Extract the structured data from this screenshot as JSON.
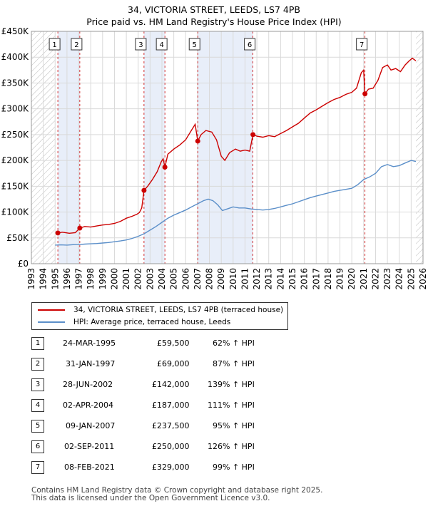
{
  "chart_data": {
    "type": "line",
    "title": "34, VICTORIA STREET, LEEDS, LS7 4PB",
    "subtitle": "Price paid vs. HM Land Registry's House Price Index (HPI)",
    "xlim": [
      1993,
      2026
    ],
    "ylim": [
      0,
      450000
    ],
    "y_ticks": [
      0,
      50000,
      100000,
      150000,
      200000,
      250000,
      300000,
      350000,
      400000,
      450000
    ],
    "y_tick_labels": [
      "£0",
      "£50K",
      "£100K",
      "£150K",
      "£200K",
      "£250K",
      "£300K",
      "£350K",
      "£400K",
      "£450K"
    ],
    "x_ticks": [
      "1993",
      "1994",
      "1995",
      "1996",
      "1997",
      "1998",
      "1999",
      "2000",
      "2001",
      "2002",
      "2003",
      "2004",
      "2005",
      "2006",
      "2007",
      "2008",
      "2009",
      "2010",
      "2011",
      "2012",
      "2013",
      "2014",
      "2015",
      "2016",
      "2017",
      "2018",
      "2019",
      "2020",
      "2021",
      "2022",
      "2023",
      "2024",
      "2025",
      "2026"
    ],
    "grid": true,
    "series": [
      {
        "name": "34, VICTORIA STREET, LEEDS, LS7 4PB (terraced house)",
        "color": "#cc0000",
        "points": [
          [
            1995.23,
            59500
          ],
          [
            1995.6,
            61000
          ],
          [
            1996.2,
            59000
          ],
          [
            1996.7,
            60000
          ],
          [
            1997.08,
            69000
          ],
          [
            1997.5,
            72000
          ],
          [
            1998.0,
            71000
          ],
          [
            1998.5,
            73000
          ],
          [
            1999.0,
            75000
          ],
          [
            1999.5,
            76000
          ],
          [
            2000.0,
            78000
          ],
          [
            2000.5,
            82000
          ],
          [
            2001.0,
            88000
          ],
          [
            2001.5,
            92000
          ],
          [
            2001.9,
            96000
          ],
          [
            2002.1,
            99000
          ],
          [
            2002.3,
            108000
          ],
          [
            2002.49,
            142000
          ],
          [
            2002.8,
            150000
          ],
          [
            2003.2,
            163000
          ],
          [
            2003.6,
            178000
          ],
          [
            2003.95,
            198000
          ],
          [
            2004.1,
            203000
          ],
          [
            2004.25,
            187000
          ],
          [
            2004.5,
            212000
          ],
          [
            2005.0,
            222000
          ],
          [
            2005.5,
            230000
          ],
          [
            2006.0,
            240000
          ],
          [
            2006.4,
            255000
          ],
          [
            2006.8,
            270000
          ],
          [
            2007.02,
            237500
          ],
          [
            2007.3,
            250000
          ],
          [
            2007.7,
            258000
          ],
          [
            2008.2,
            255000
          ],
          [
            2008.6,
            240000
          ],
          [
            2009.0,
            208000
          ],
          [
            2009.3,
            200000
          ],
          [
            2009.7,
            215000
          ],
          [
            2010.2,
            222000
          ],
          [
            2010.6,
            218000
          ],
          [
            2011.0,
            220000
          ],
          [
            2011.4,
            218000
          ],
          [
            2011.67,
            250000
          ],
          [
            2012.0,
            247000
          ],
          [
            2012.5,
            245000
          ],
          [
            2013.0,
            248000
          ],
          [
            2013.5,
            246000
          ],
          [
            2014.0,
            252000
          ],
          [
            2014.5,
            258000
          ],
          [
            2015.0,
            265000
          ],
          [
            2015.5,
            272000
          ],
          [
            2016.0,
            282000
          ],
          [
            2016.5,
            292000
          ],
          [
            2017.0,
            298000
          ],
          [
            2017.5,
            305000
          ],
          [
            2018.0,
            312000
          ],
          [
            2018.5,
            318000
          ],
          [
            2019.0,
            322000
          ],
          [
            2019.5,
            328000
          ],
          [
            2020.0,
            332000
          ],
          [
            2020.4,
            340000
          ],
          [
            2020.8,
            370000
          ],
          [
            2021.0,
            375000
          ],
          [
            2021.11,
            329000
          ],
          [
            2021.4,
            338000
          ],
          [
            2021.8,
            340000
          ],
          [
            2022.2,
            355000
          ],
          [
            2022.6,
            380000
          ],
          [
            2023.0,
            385000
          ],
          [
            2023.3,
            375000
          ],
          [
            2023.7,
            378000
          ],
          [
            2024.1,
            372000
          ],
          [
            2024.5,
            385000
          ],
          [
            2024.8,
            392000
          ],
          [
            2025.1,
            398000
          ],
          [
            2025.4,
            393000
          ]
        ]
      },
      {
        "name": "HPI: Average price, terraced house, Leeds",
        "color": "#5b8fc9",
        "points": [
          [
            1995.0,
            36000
          ],
          [
            1995.5,
            36500
          ],
          [
            1996.0,
            36000
          ],
          [
            1996.5,
            36800
          ],
          [
            1997.0,
            37000
          ],
          [
            1997.5,
            38000
          ],
          [
            1998.0,
            38500
          ],
          [
            1998.5,
            39000
          ],
          [
            1999.0,
            40000
          ],
          [
            1999.5,
            41000
          ],
          [
            2000.0,
            42500
          ],
          [
            2000.5,
            44000
          ],
          [
            2001.0,
            46000
          ],
          [
            2001.5,
            49000
          ],
          [
            2002.0,
            53000
          ],
          [
            2002.5,
            58000
          ],
          [
            2003.0,
            65000
          ],
          [
            2003.5,
            72000
          ],
          [
            2004.0,
            80000
          ],
          [
            2004.5,
            88000
          ],
          [
            2005.0,
            94000
          ],
          [
            2005.5,
            99000
          ],
          [
            2006.0,
            104000
          ],
          [
            2006.5,
            110000
          ],
          [
            2007.0,
            116000
          ],
          [
            2007.5,
            122000
          ],
          [
            2007.9,
            125000
          ],
          [
            2008.3,
            122000
          ],
          [
            2008.7,
            114000
          ],
          [
            2009.1,
            103000
          ],
          [
            2009.5,
            106000
          ],
          [
            2010.0,
            110000
          ],
          [
            2010.5,
            108000
          ],
          [
            2011.0,
            108000
          ],
          [
            2011.5,
            106000
          ],
          [
            2012.0,
            105000
          ],
          [
            2012.5,
            104000
          ],
          [
            2013.0,
            105000
          ],
          [
            2013.5,
            107000
          ],
          [
            2014.0,
            110000
          ],
          [
            2014.5,
            113000
          ],
          [
            2015.0,
            116000
          ],
          [
            2015.5,
            120000
          ],
          [
            2016.0,
            124000
          ],
          [
            2016.5,
            128000
          ],
          [
            2017.0,
            131000
          ],
          [
            2017.5,
            134000
          ],
          [
            2018.0,
            137000
          ],
          [
            2018.5,
            140000
          ],
          [
            2019.0,
            142000
          ],
          [
            2019.5,
            144000
          ],
          [
            2020.0,
            146000
          ],
          [
            2020.5,
            153000
          ],
          [
            2021.0,
            163000
          ],
          [
            2021.5,
            168000
          ],
          [
            2022.0,
            175000
          ],
          [
            2022.5,
            188000
          ],
          [
            2023.0,
            192000
          ],
          [
            2023.5,
            188000
          ],
          [
            2024.0,
            190000
          ],
          [
            2024.5,
            195000
          ],
          [
            2025.0,
            200000
          ],
          [
            2025.4,
            198000
          ]
        ]
      }
    ],
    "sales": [
      {
        "n": "1",
        "year": 1995.23,
        "price": 59500
      },
      {
        "n": "2",
        "year": 1997.08,
        "price": 69000
      },
      {
        "n": "3",
        "year": 2002.49,
        "price": 142000
      },
      {
        "n": "4",
        "year": 2004.25,
        "price": 187000
      },
      {
        "n": "5",
        "year": 2007.02,
        "price": 237500
      },
      {
        "n": "6",
        "year": 2011.67,
        "price": 250000
      },
      {
        "n": "7",
        "year": 2021.11,
        "price": 329000
      }
    ],
    "hatched_ranges": [
      [
        1993,
        1995.0
      ],
      [
        2025.4,
        2026
      ]
    ]
  },
  "legend": {
    "line1": "34, VICTORIA STREET, LEEDS, LS7 4PB (terraced house)",
    "line2": "HPI: Average price, terraced house, Leeds"
  },
  "table": [
    {
      "n": "1",
      "date": "24-MAR-1995",
      "price": "£59,500",
      "hpi": "62% ↑ HPI"
    },
    {
      "n": "2",
      "date": "31-JAN-1997",
      "price": "£69,000",
      "hpi": "87% ↑ HPI"
    },
    {
      "n": "3",
      "date": "28-JUN-2002",
      "price": "£142,000",
      "hpi": "139% ↑ HPI"
    },
    {
      "n": "4",
      "date": "02-APR-2004",
      "price": "£187,000",
      "hpi": "111% ↑ HPI"
    },
    {
      "n": "5",
      "date": "09-JAN-2007",
      "price": "£237,500",
      "hpi": "95% ↑ HPI"
    },
    {
      "n": "6",
      "date": "02-SEP-2011",
      "price": "£250,000",
      "hpi": "126% ↑ HPI"
    },
    {
      "n": "7",
      "date": "08-FEB-2021",
      "price": "£329,000",
      "hpi": "99% ↑ HPI"
    }
  ],
  "footer": {
    "line1": "Contains HM Land Registry data © Crown copyright and database right 2025.",
    "line2": "This data is licensed under the Open Government Licence v3.0."
  }
}
